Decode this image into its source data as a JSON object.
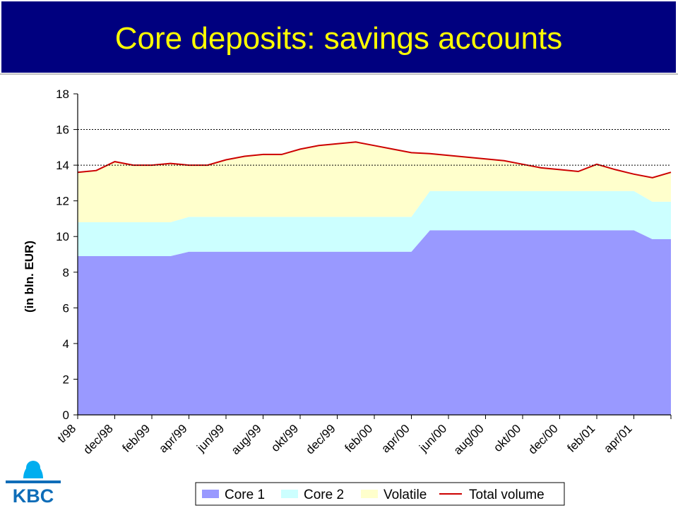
{
  "slide": {
    "title": "Core deposits: savings accounts"
  },
  "logo": {
    "text": "KBC",
    "color": "#0f6db8",
    "accent": "#00aeef"
  },
  "chart_data": {
    "type": "area",
    "ylabel": "(in bln. EUR)",
    "ylim": [
      0,
      18
    ],
    "yticks": [
      0,
      2,
      4,
      6,
      8,
      10,
      12,
      14,
      16,
      18
    ],
    "grid": "dotted at 14 and 16",
    "x_tick_labels": [
      "t/98",
      "dec/98",
      "feb/99",
      "apr/99",
      "jun/99",
      "aug/99",
      "okt/99",
      "dec/99",
      "feb/00",
      "apr/00",
      "jun/00",
      "aug/00",
      "okt/00",
      "dec/00",
      "feb/01",
      "apr/01"
    ],
    "series": [
      {
        "name": "Core 1",
        "type": "area",
        "color": "#9999ff",
        "values": [
          8.9,
          8.9,
          8.9,
          8.9,
          8.9,
          8.9,
          9.15,
          9.15,
          9.15,
          9.15,
          9.15,
          9.15,
          9.15,
          9.15,
          9.15,
          9.15,
          9.15,
          9.15,
          9.15,
          10.35,
          10.35,
          10.35,
          10.35,
          10.35,
          10.35,
          10.35,
          10.35,
          10.35,
          10.35,
          10.35,
          10.35,
          9.85,
          9.85
        ]
      },
      {
        "name": "Core 2",
        "type": "area",
        "color": "#ccffff",
        "values": [
          1.9,
          1.9,
          1.9,
          1.9,
          1.9,
          1.9,
          1.95,
          1.95,
          1.95,
          1.95,
          1.95,
          1.95,
          1.95,
          1.95,
          1.95,
          1.95,
          1.95,
          1.95,
          1.95,
          2.2,
          2.2,
          2.2,
          2.2,
          2.2,
          2.2,
          2.2,
          2.2,
          2.2,
          2.2,
          2.2,
          2.2,
          2.1,
          2.1
        ]
      },
      {
        "name": "Volatile",
        "type": "area",
        "color": "#ffffcc",
        "values": [
          2.8,
          2.9,
          3.4,
          3.2,
          3.2,
          3.3,
          2.9,
          2.9,
          3.2,
          3.4,
          3.5,
          3.5,
          3.8,
          4.0,
          4.1,
          4.2,
          4.0,
          3.8,
          3.6,
          2.1,
          2.0,
          1.9,
          1.8,
          1.7,
          1.5,
          1.3,
          1.2,
          1.1,
          1.5,
          1.2,
          0.95,
          1.35,
          1.65
        ]
      },
      {
        "name": "Total volume",
        "type": "line",
        "color": "#cc0000",
        "values": [
          13.6,
          13.7,
          14.2,
          14.0,
          14.0,
          14.1,
          14.0,
          14.0,
          14.3,
          14.5,
          14.6,
          14.6,
          14.9,
          15.1,
          15.2,
          15.3,
          15.1,
          14.9,
          14.7,
          14.65,
          14.55,
          14.45,
          14.35,
          14.25,
          14.05,
          13.85,
          13.75,
          13.65,
          14.05,
          13.75,
          13.5,
          13.3,
          13.6
        ]
      }
    ],
    "legend": {
      "placement": "bottom-right",
      "entries": [
        "Core 1",
        "Core 2",
        "Volatile",
        "Total volume"
      ]
    }
  }
}
